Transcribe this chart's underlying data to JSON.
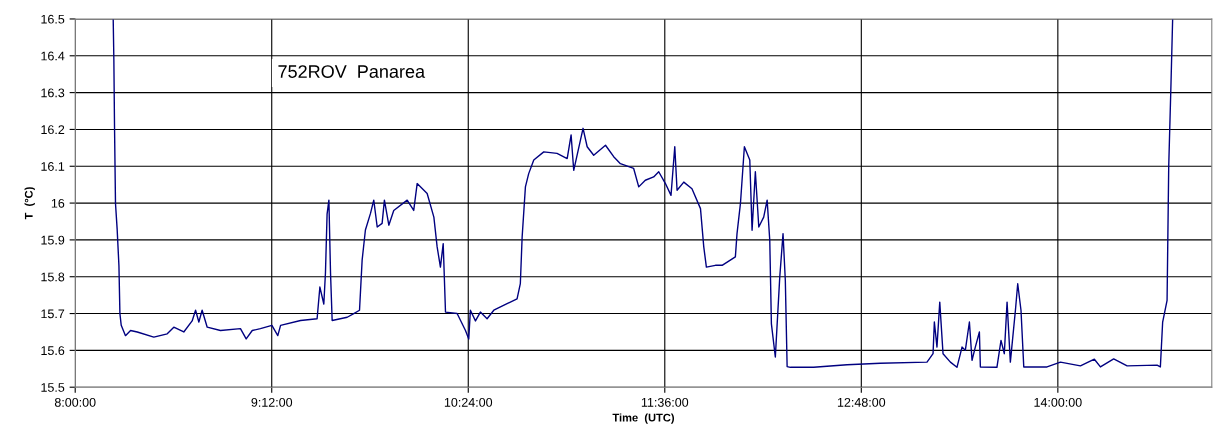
{
  "chart_data": {
    "type": "line",
    "xlabel": "Time  (UTC)",
    "ylabel": "T  (°C)",
    "annotations": [
      "752ROV  Panarea"
    ],
    "xlim": [
      8,
      14.94
    ],
    "ylim": [
      15.5,
      16.5
    ],
    "xticks": [
      {
        "value": 8,
        "label": "8:00:00"
      },
      {
        "value": 9.2,
        "label": "9:12:00"
      },
      {
        "value": 10.4,
        "label": "10:24:00"
      },
      {
        "value": 11.6,
        "label": "11:36:00"
      },
      {
        "value": 12.8,
        "label": "12:48:00"
      },
      {
        "value": 14.0,
        "label": "14:00:00"
      }
    ],
    "yticks": [
      15.5,
      15.6,
      15.7,
      15.8,
      15.9,
      16,
      16.1,
      16.2,
      16.3,
      16.4,
      16.5
    ],
    "grid": true,
    "marker": "none",
    "line_style": "solid",
    "series": [
      {
        "color": "#000080",
        "x": [
          8.232,
          8.236,
          8.24,
          8.246,
          8.256,
          8.267,
          8.273,
          8.281,
          8.307,
          8.338,
          8.379,
          8.48,
          8.562,
          8.602,
          8.663,
          8.714,
          8.735,
          8.755,
          8.775,
          8.806,
          8.887,
          9.009,
          9.044,
          9.081,
          9.131,
          9.201,
          9.237,
          9.254,
          9.376,
          9.477,
          9.494,
          9.518,
          9.528,
          9.538,
          9.549,
          9.559,
          9.569,
          9.661,
          9.701,
          9.736,
          9.752,
          9.772,
          9.803,
          9.823,
          9.844,
          9.874,
          9.888,
          9.915,
          9.945,
          10.027,
          10.067,
          10.088,
          10.149,
          10.19,
          10.21,
          10.23,
          10.247,
          10.261,
          10.332,
          10.383,
          10.403,
          10.413,
          10.444,
          10.474,
          10.515,
          10.556,
          10.637,
          10.698,
          10.718,
          10.729,
          10.749,
          10.769,
          10.8,
          10.861,
          10.942,
          11.004,
          11.028,
          11.044,
          11.085,
          11.101,
          11.126,
          11.166,
          11.238,
          11.288,
          11.329,
          11.41,
          11.441,
          11.481,
          11.532,
          11.563,
          11.604,
          11.638,
          11.661,
          11.675,
          11.716,
          11.766,
          11.818,
          11.838,
          11.854,
          11.909,
          11.95,
          12.031,
          12.041,
          12.062,
          12.086,
          12.119,
          12.133,
          12.153,
          12.174,
          12.204,
          12.225,
          12.241,
          12.251,
          12.275,
          12.302,
          12.322,
          12.336,
          12.347,
          12.367,
          12.509,
          12.713,
          12.916,
          13.201,
          13.238,
          13.246,
          13.262,
          13.279,
          13.299,
          13.344,
          13.384,
          13.415,
          13.435,
          13.46,
          13.476,
          13.496,
          13.521,
          13.527,
          13.628,
          13.653,
          13.673,
          13.69,
          13.71,
          13.741,
          13.755,
          13.775,
          13.792,
          13.934,
          14.016,
          14.138,
          14.223,
          14.26,
          14.341,
          14.423,
          14.606,
          14.626,
          14.64,
          14.667,
          14.677,
          14.691,
          14.701
        ],
        "values": [
          16.5,
          16.39,
          16.21,
          15.999,
          15.93,
          15.83,
          15.7,
          15.668,
          15.64,
          15.654,
          15.65,
          15.636,
          15.645,
          15.663,
          15.65,
          15.68,
          15.709,
          15.677,
          15.709,
          15.663,
          15.654,
          15.659,
          15.631,
          15.654,
          15.659,
          15.668,
          15.64,
          15.668,
          15.681,
          15.686,
          15.772,
          15.726,
          15.81,
          15.97,
          16.008,
          15.81,
          15.681,
          15.69,
          15.7,
          15.709,
          15.845,
          15.927,
          15.972,
          16.008,
          15.935,
          15.945,
          16.008,
          15.94,
          15.98,
          16.008,
          15.98,
          16.053,
          16.026,
          15.962,
          15.881,
          15.826,
          15.89,
          15.704,
          15.7,
          15.654,
          15.631,
          15.709,
          15.68,
          15.704,
          15.686,
          15.709,
          15.727,
          15.74,
          15.781,
          15.908,
          16.044,
          16.08,
          16.117,
          16.139,
          16.135,
          16.121,
          16.185,
          16.089,
          16.171,
          16.203,
          16.153,
          16.13,
          16.157,
          16.126,
          16.107,
          16.094,
          16.044,
          16.062,
          16.071,
          16.085,
          16.053,
          16.021,
          16.153,
          16.035,
          16.057,
          16.039,
          15.985,
          15.881,
          15.826,
          15.831,
          15.831,
          15.854,
          15.917,
          15.999,
          16.153,
          16.117,
          15.926,
          16.085,
          15.935,
          15.962,
          16.008,
          15.899,
          15.672,
          15.582,
          15.799,
          15.917,
          15.79,
          15.556,
          15.554,
          15.554,
          15.561,
          15.565,
          15.568,
          15.591,
          15.677,
          15.609,
          15.731,
          15.591,
          15.568,
          15.554,
          15.609,
          15.6,
          15.677,
          15.573,
          15.609,
          15.65,
          15.555,
          15.554,
          15.627,
          15.591,
          15.731,
          15.568,
          15.709,
          15.781,
          15.709,
          15.555,
          15.555,
          15.568,
          15.558,
          15.576,
          15.555,
          15.577,
          15.558,
          15.56,
          15.555,
          15.677,
          15.736,
          16.099,
          16.326,
          16.5
        ]
      }
    ]
  }
}
